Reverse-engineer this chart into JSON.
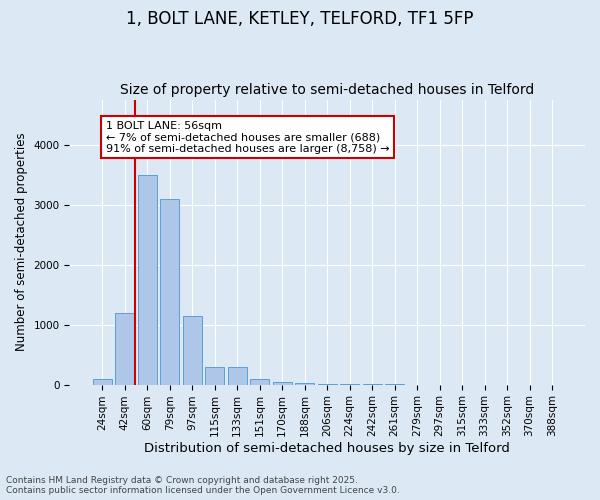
{
  "title1": "1, BOLT LANE, KETLEY, TELFORD, TF1 5FP",
  "title2": "Size of property relative to semi-detached houses in Telford",
  "xlabel": "Distribution of semi-detached houses by size in Telford",
  "ylabel": "Number of semi-detached properties",
  "categories": [
    "24sqm",
    "42sqm",
    "60sqm",
    "79sqm",
    "97sqm",
    "115sqm",
    "133sqm",
    "151sqm",
    "170sqm",
    "188sqm",
    "206sqm",
    "224sqm",
    "242sqm",
    "261sqm",
    "279sqm",
    "297sqm",
    "315sqm",
    "333sqm",
    "352sqm",
    "370sqm",
    "388sqm"
  ],
  "values": [
    100,
    1200,
    3500,
    3100,
    1150,
    300,
    300,
    100,
    50,
    30,
    10,
    5,
    3,
    2,
    1,
    1,
    0,
    0,
    0,
    0,
    0
  ],
  "bar_color": "#aec6e8",
  "bar_edge_color": "#5a9fd4",
  "annotation_line_color": "#cc0000",
  "annotation_box_edge_color": "#cc0000",
  "annotation_box_text": "1 BOLT LANE: 56sqm\n← 7% of semi-detached houses are smaller (688)\n91% of semi-detached houses are larger (8,758) →",
  "ylim": [
    0,
    4750
  ],
  "background_color": "#dce9f5",
  "grid_color": "#ffffff",
  "footer_text": "Contains HM Land Registry data © Crown copyright and database right 2025.\nContains public sector information licensed under the Open Government Licence v3.0.",
  "title1_fontsize": 12,
  "title2_fontsize": 10,
  "xlabel_fontsize": 9.5,
  "ylabel_fontsize": 8.5,
  "tick_fontsize": 7.5,
  "annotation_fontsize": 8,
  "footer_fontsize": 6.5
}
